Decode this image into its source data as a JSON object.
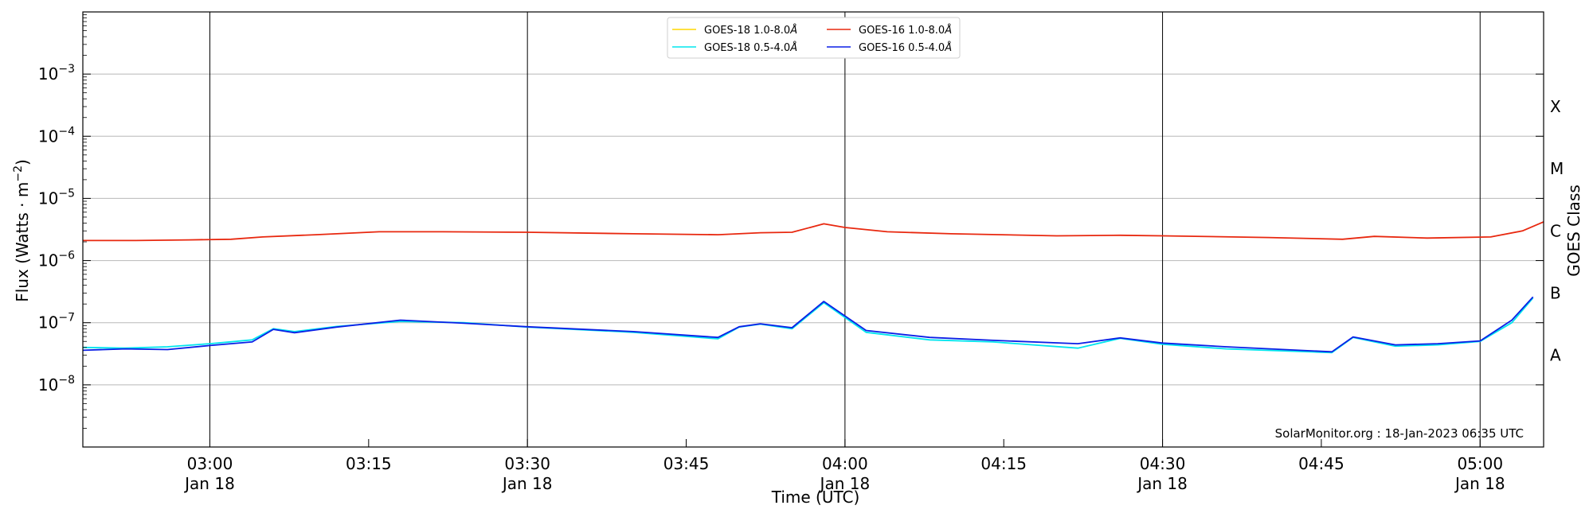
{
  "chart_data": {
    "type": "line",
    "xlabel": "Time (UTC)",
    "ylabel": "Flux (Watts · m",
    "ylabel_sup": "−2",
    "ylabel_close": ")",
    "right_ylabel": "GOES Class",
    "credit": "SolarMonitor.org : 18-Jan-2023 06:35 UTC",
    "y_scale": "log",
    "ylim": [
      1e-09,
      0.01
    ],
    "xlim": [
      "02:48",
      "05:06"
    ],
    "grid": "horizontal lines at each decade",
    "legend_position": "top-center",
    "y_ticks": [
      {
        "value": 1e-08,
        "base": "10",
        "exp": "−8"
      },
      {
        "value": 1e-07,
        "base": "10",
        "exp": "−7"
      },
      {
        "value": 1e-06,
        "base": "10",
        "exp": "−6"
      },
      {
        "value": 1e-05,
        "base": "10",
        "exp": "−5"
      },
      {
        "value": 0.0001,
        "base": "10",
        "exp": "−4"
      },
      {
        "value": 0.001,
        "base": "10",
        "exp": "−3"
      }
    ],
    "x_ticks": [
      {
        "time": "03:00",
        "date": "Jan 18"
      },
      {
        "time": "03:15",
        "date": ""
      },
      {
        "time": "03:30",
        "date": "Jan 18"
      },
      {
        "time": "03:45",
        "date": ""
      },
      {
        "time": "04:00",
        "date": "Jan 18"
      },
      {
        "time": "04:15",
        "date": ""
      },
      {
        "time": "04:30",
        "date": "Jan 18"
      },
      {
        "time": "04:45",
        "date": ""
      },
      {
        "time": "05:00",
        "date": "Jan 18"
      }
    ],
    "vertical_lines": [
      "03:00",
      "03:30",
      "04:00",
      "04:30",
      "05:00"
    ],
    "goes_classes": [
      {
        "label": "A",
        "level": 3e-08
      },
      {
        "label": "B",
        "level": 3e-07
      },
      {
        "label": "C",
        "level": 3e-06
      },
      {
        "label": "M",
        "level": 3e-05
      },
      {
        "label": "X",
        "level": 0.0003
      }
    ],
    "series": [
      {
        "name": "GOES-18 1.0-8.0",
        "color": "#ffd700",
        "x": [],
        "values": []
      },
      {
        "name": "GOES-18 0.5-4.0",
        "color": "#00e5ee",
        "x": [
          "02:48",
          "02:52",
          "02:56",
          "03:00",
          "03:04",
          "03:06",
          "03:08",
          "03:12",
          "03:18",
          "03:24",
          "03:30",
          "03:40",
          "03:48",
          "03:50",
          "03:52",
          "03:55",
          "03:58",
          "04:02",
          "04:08",
          "04:14",
          "04:22",
          "04:26",
          "04:30",
          "04:36",
          "04:46",
          "04:48",
          "04:52",
          "04:56",
          "05:00",
          "05:03",
          "05:05"
        ],
        "values": [
          4e-08,
          3.9e-08,
          4.1e-08,
          4.6e-08,
          5.3e-08,
          8e-08,
          7.2e-08,
          8.7e-08,
          1.05e-07,
          1e-07,
          8.5e-08,
          7e-08,
          5.5e-08,
          8.5e-08,
          9.5e-08,
          8e-08,
          2.1e-07,
          7e-08,
          5.3e-08,
          4.9e-08,
          3.9e-08,
          5.6e-08,
          4.5e-08,
          3.8e-08,
          3.3e-08,
          5.8e-08,
          4.2e-08,
          4.4e-08,
          5e-08,
          1e-07,
          2.5e-07
        ]
      },
      {
        "name": "GOES-16 1.0-8.0",
        "color": "#e8280f",
        "x": [
          "02:48",
          "02:53",
          "02:58",
          "03:02",
          "03:05",
          "03:10",
          "03:16",
          "03:22",
          "03:30",
          "03:40",
          "03:48",
          "03:52",
          "03:55",
          "03:58",
          "04:00",
          "04:04",
          "04:10",
          "04:20",
          "04:26",
          "04:30",
          "04:40",
          "04:47",
          "04:50",
          "04:55",
          "05:01",
          "05:04",
          "05:06"
        ],
        "values": [
          2.1e-06,
          2.1e-06,
          2.15e-06,
          2.2e-06,
          2.4e-06,
          2.6e-06,
          2.9e-06,
          2.9e-06,
          2.85e-06,
          2.7e-06,
          2.6e-06,
          2.8e-06,
          2.85e-06,
          3.9e-06,
          3.4e-06,
          2.9e-06,
          2.7e-06,
          2.5e-06,
          2.55e-06,
          2.5e-06,
          2.35e-06,
          2.2e-06,
          2.45e-06,
          2.3e-06,
          2.4e-06,
          3e-06,
          4.2e-06
        ]
      },
      {
        "name": "GOES-16 0.5-4.0",
        "color": "#0a1ee6",
        "x": [
          "02:48",
          "02:52",
          "02:56",
          "03:00",
          "03:04",
          "03:06",
          "03:08",
          "03:12",
          "03:18",
          "03:24",
          "03:30",
          "03:40",
          "03:48",
          "03:50",
          "03:52",
          "03:55",
          "03:58",
          "04:02",
          "04:08",
          "04:14",
          "04:22",
          "04:26",
          "04:30",
          "04:36",
          "04:46",
          "04:48",
          "04:52",
          "04:56",
          "05:00",
          "05:03",
          "05:05"
        ],
        "values": [
          3.6e-08,
          3.8e-08,
          3.7e-08,
          4.3e-08,
          4.9e-08,
          7.8e-08,
          6.9e-08,
          8.5e-08,
          1.1e-07,
          9.8e-08,
          8.6e-08,
          7.2e-08,
          5.8e-08,
          8.6e-08,
          9.6e-08,
          8.3e-08,
          2.2e-07,
          7.5e-08,
          5.8e-08,
          5.2e-08,
          4.6e-08,
          5.7e-08,
          4.7e-08,
          4.1e-08,
          3.4e-08,
          5.9e-08,
          4.4e-08,
          4.6e-08,
          5.1e-08,
          1.1e-07,
          2.6e-07
        ]
      }
    ]
  }
}
